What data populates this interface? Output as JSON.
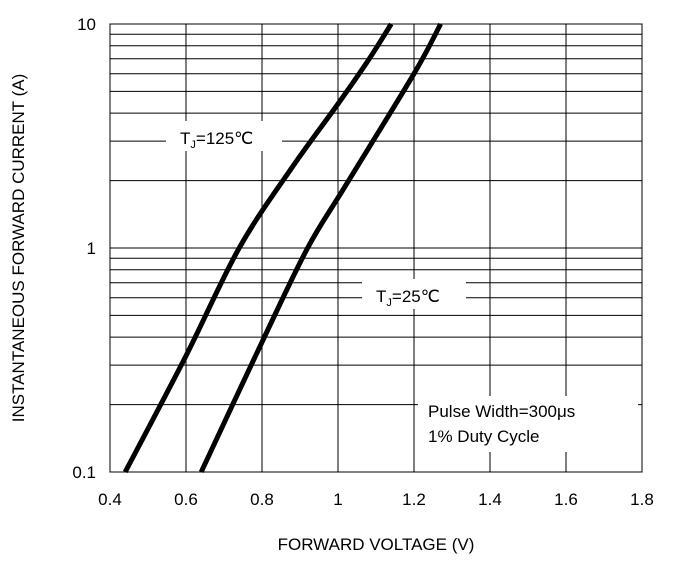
{
  "chart_data": {
    "type": "line",
    "xlabel": "FORWARD VOLTAGE (V)",
    "ylabel": "INSTANTANEOUS FORWARD CURRENT (A)",
    "xlim": [
      0.4,
      1.8
    ],
    "ylim": [
      0.1,
      10
    ],
    "yscale": "log",
    "grid": true,
    "x_ticks": [
      "0.4",
      "0.6",
      "0.8",
      "1",
      "1.2",
      "1.4",
      "1.6",
      "1.8"
    ],
    "y_ticks": [
      "0.1",
      "1",
      "10"
    ],
    "series": [
      {
        "name": "TJ=125℃",
        "label_main": "T",
        "label_sub": "J",
        "label_rest": "=125℃",
        "points": [
          [
            0.44,
            0.1
          ],
          [
            0.6,
            0.33
          ],
          [
            0.74,
            1.0
          ],
          [
            0.88,
            2.3
          ],
          [
            1.0,
            4.4
          ],
          [
            1.08,
            6.9
          ],
          [
            1.14,
            10.0
          ]
        ]
      },
      {
        "name": "TJ=25℃",
        "label_main": "T",
        "label_sub": "J",
        "label_rest": "=25℃",
        "points": [
          [
            0.64,
            0.1
          ],
          [
            0.8,
            0.38
          ],
          [
            0.92,
            1.0
          ],
          [
            1.02,
            1.9
          ],
          [
            1.2,
            6.0
          ],
          [
            1.27,
            10.0
          ]
        ]
      }
    ],
    "annotation": {
      "line1": "Pulse Width=300μs",
      "line2": "1% Duty Cycle"
    }
  }
}
